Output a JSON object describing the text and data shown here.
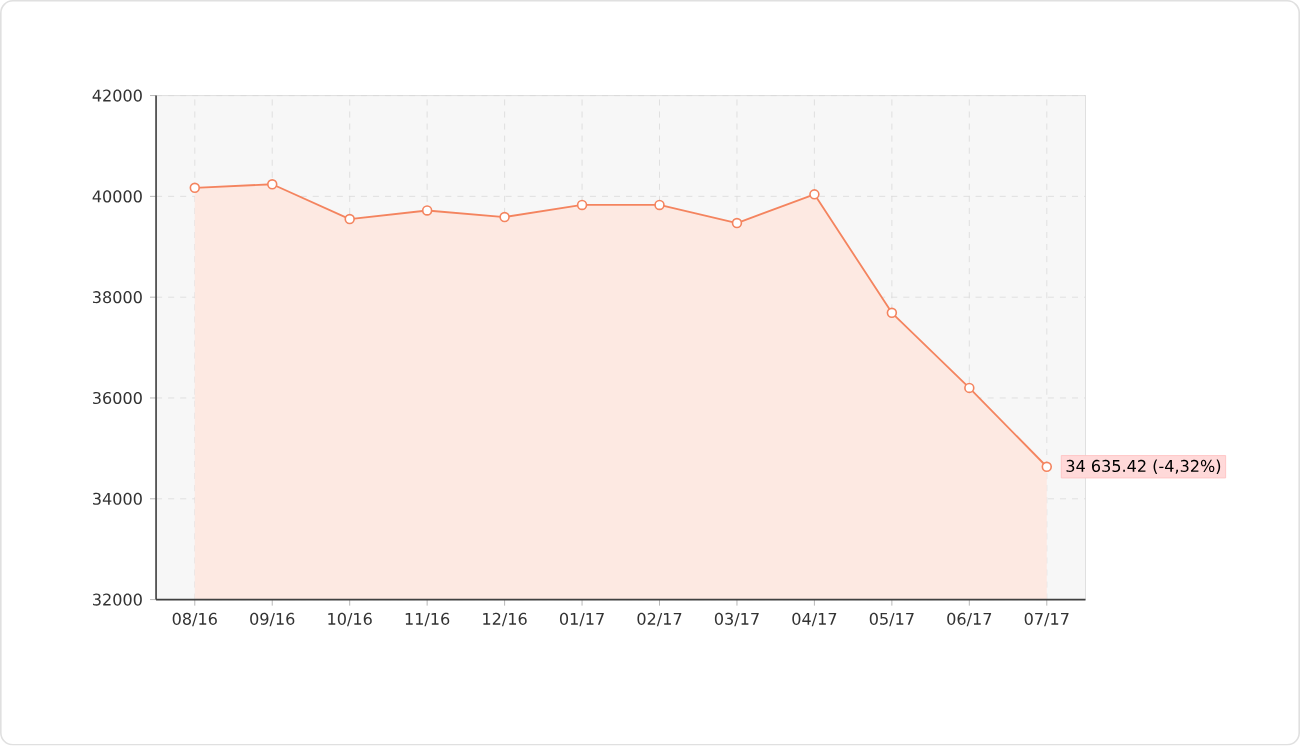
{
  "chart_data": {
    "type": "area",
    "categories": [
      "08/16",
      "09/16",
      "10/16",
      "11/16",
      "12/16",
      "01/17",
      "02/17",
      "03/17",
      "04/17",
      "05/17",
      "06/17",
      "07/17"
    ],
    "values": [
      40170,
      40240,
      39550,
      39720,
      39590,
      39830,
      39830,
      39470,
      40040,
      37690,
      36200,
      34635.42
    ],
    "color": "#f4845f",
    "ylim": [
      32000,
      42000
    ],
    "yticks": [
      32000,
      34000,
      36000,
      38000,
      40000,
      42000
    ],
    "grid": true,
    "marker": "circle",
    "line_style": "solid",
    "annotations": [
      {
        "text": "34 635.42 (-4,32%)",
        "x": "07/17",
        "y": 34635.42
      }
    ]
  }
}
